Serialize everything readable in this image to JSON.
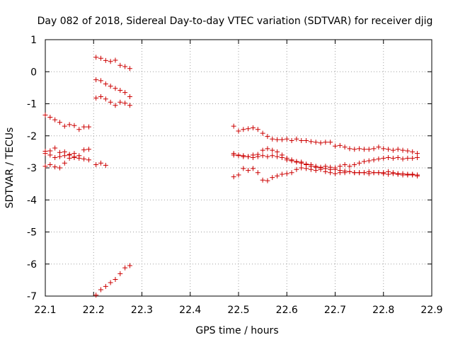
{
  "chart_data": {
    "type": "scatter",
    "title": "Day 082 of 2018, Sidereal Day-to-day VTEC variation (SDTVAR) for receiver djig",
    "xlabel": "GPS time / hours",
    "ylabel": "SDTVAR / TECUs",
    "xlim": [
      22.1,
      22.9
    ],
    "ylim": [
      -7,
      1
    ],
    "xticks": [
      "22.1",
      "22.2",
      "22.3",
      "22.4",
      "22.5",
      "22.6",
      "22.7",
      "22.8",
      "22.9"
    ],
    "yticks": [
      "1",
      "0",
      "-1",
      "-2",
      "-3",
      "-4",
      "-5",
      "-6",
      "-7"
    ],
    "grid": true,
    "marker": "+",
    "color": "#cc0000",
    "series": [
      {
        "name": "s1",
        "x": [
          22.1,
          22.11,
          22.12,
          22.13,
          22.14,
          22.15,
          22.16,
          22.17,
          22.18,
          22.19
        ],
        "y": [
          -1.35,
          -1.42,
          -1.5,
          -1.58,
          -1.7,
          -1.65,
          -1.68,
          -1.8,
          -1.72,
          -1.72
        ]
      },
      {
        "name": "s2",
        "x": [
          22.1,
          22.11,
          22.12,
          22.13,
          22.14,
          22.15,
          22.16,
          22.17,
          22.18,
          22.19
        ],
        "y": [
          -2.48,
          -2.47,
          -2.38,
          -2.52,
          -2.5,
          -2.58,
          -2.55,
          -2.62,
          -2.44,
          -2.42
        ]
      },
      {
        "name": "s3",
        "x": [
          22.1,
          22.11,
          22.12,
          22.13,
          22.14,
          22.15,
          22.16,
          22.17,
          22.18,
          22.19
        ],
        "y": [
          -2.55,
          -2.6,
          -2.68,
          -2.65,
          -2.62,
          -2.6,
          -2.68,
          -2.7,
          -2.72,
          -2.75
        ]
      },
      {
        "name": "s4",
        "x": [
          22.1,
          22.11,
          22.12,
          22.13,
          22.14,
          22.15,
          22.16
        ],
        "y": [
          -2.95,
          -2.9,
          -2.97,
          -3.0,
          -2.85,
          -2.7,
          -2.65
        ]
      },
      {
        "name": "s5",
        "x": [
          22.205,
          22.215,
          22.225,
          22.235,
          22.245,
          22.255,
          22.265,
          22.275
        ],
        "y": [
          0.45,
          0.42,
          0.35,
          0.32,
          0.36,
          0.2,
          0.16,
          0.1
        ]
      },
      {
        "name": "s6",
        "x": [
          22.205,
          22.215,
          22.225,
          22.235,
          22.245,
          22.255,
          22.265,
          22.275
        ],
        "y": [
          -0.25,
          -0.28,
          -0.38,
          -0.45,
          -0.52,
          -0.58,
          -0.65,
          -0.78
        ]
      },
      {
        "name": "s7",
        "x": [
          22.205,
          22.215,
          22.225,
          22.235,
          22.245,
          22.255,
          22.265,
          22.275
        ],
        "y": [
          -0.82,
          -0.78,
          -0.85,
          -0.95,
          -1.05,
          -0.95,
          -0.98,
          -1.05
        ]
      },
      {
        "name": "s8",
        "x": [
          22.205,
          22.215,
          22.225
        ],
        "y": [
          -2.9,
          -2.85,
          -2.92
        ]
      },
      {
        "name": "s9",
        "x": [
          22.205,
          22.215,
          22.225,
          22.235,
          22.245,
          22.255,
          22.265,
          22.275
        ],
        "y": [
          -6.97,
          -6.8,
          -6.7,
          -6.58,
          -6.48,
          -6.3,
          -6.12,
          -6.05
        ]
      },
      {
        "name": "s10",
        "x": [
          22.49,
          22.5,
          22.51,
          22.52,
          22.53,
          22.54,
          22.55,
          22.56,
          22.57,
          22.58,
          22.59,
          22.6,
          22.61,
          22.62,
          22.63,
          22.64,
          22.65,
          22.66,
          22.67,
          22.68,
          22.69,
          22.7,
          22.71,
          22.72,
          22.73,
          22.74,
          22.75,
          22.76,
          22.77,
          22.78,
          22.79,
          22.8,
          22.81,
          22.82,
          22.83,
          22.84,
          22.85,
          22.86,
          22.87
        ],
        "y": [
          -1.7,
          -1.85,
          -1.8,
          -1.78,
          -1.75,
          -1.8,
          -1.92,
          -2.02,
          -2.1,
          -2.12,
          -2.12,
          -2.1,
          -2.15,
          -2.1,
          -2.15,
          -2.15,
          -2.18,
          -2.2,
          -2.22,
          -2.2,
          -2.2,
          -2.32,
          -2.3,
          -2.35,
          -2.4,
          -2.42,
          -2.4,
          -2.42,
          -2.42,
          -2.4,
          -2.35,
          -2.4,
          -2.42,
          -2.45,
          -2.42,
          -2.45,
          -2.47,
          -2.5,
          -2.55
        ]
      },
      {
        "name": "s11",
        "x": [
          22.49,
          22.5,
          22.51,
          22.52,
          22.53,
          22.54,
          22.55,
          22.56,
          22.57,
          22.58,
          22.59,
          22.6,
          22.61,
          22.62,
          22.63,
          22.64,
          22.65,
          22.66,
          22.67,
          22.68,
          22.69,
          22.7,
          22.71,
          22.72,
          22.73,
          22.74,
          22.75,
          22.76,
          22.77,
          22.78,
          22.79,
          22.8,
          22.81,
          22.82,
          22.83,
          22.84,
          22.85,
          22.86,
          22.87
        ],
        "y": [
          -2.55,
          -2.6,
          -2.62,
          -2.65,
          -2.6,
          -2.58,
          -2.45,
          -2.4,
          -2.45,
          -2.5,
          -2.6,
          -2.7,
          -2.75,
          -2.82,
          -2.85,
          -2.9,
          -2.95,
          -2.98,
          -3.0,
          -3.02,
          -3.05,
          -3.05,
          -3.08,
          -3.1,
          -3.12,
          -3.15,
          -3.15,
          -3.15,
          -3.12,
          -3.15,
          -3.15,
          -3.15,
          -3.12,
          -3.15,
          -3.18,
          -3.18,
          -3.2,
          -3.2,
          -3.22
        ]
      },
      {
        "name": "s12",
        "x": [
          22.49,
          22.5,
          22.51,
          22.52,
          22.53,
          22.54,
          22.55,
          22.56,
          22.57,
          22.58,
          22.59,
          22.6,
          22.61,
          22.62,
          22.63,
          22.64,
          22.65,
          22.66,
          22.67,
          22.68,
          22.69,
          22.7,
          22.71,
          22.72,
          22.73,
          22.74,
          22.75,
          22.76,
          22.77,
          22.78,
          22.79,
          22.8,
          22.81,
          22.82,
          22.83,
          22.84,
          22.85,
          22.86,
          22.87
        ],
        "y": [
          -2.6,
          -2.62,
          -2.65,
          -2.65,
          -2.68,
          -2.65,
          -2.62,
          -2.65,
          -2.62,
          -2.65,
          -2.68,
          -2.75,
          -2.78,
          -2.8,
          -2.82,
          -2.88,
          -2.9,
          -2.95,
          -2.98,
          -2.95,
          -2.98,
          -3.0,
          -2.95,
          -2.9,
          -2.95,
          -2.9,
          -2.85,
          -2.8,
          -2.78,
          -2.75,
          -2.72,
          -2.7,
          -2.68,
          -2.7,
          -2.68,
          -2.72,
          -2.7,
          -2.7,
          -2.68
        ]
      },
      {
        "name": "s13",
        "x": [
          22.49,
          22.5,
          22.51,
          22.52,
          22.53,
          22.54,
          22.55,
          22.56,
          22.57,
          22.58,
          22.59,
          22.6,
          22.61,
          22.62,
          22.63,
          22.64,
          22.65,
          22.66,
          22.67,
          22.68,
          22.69,
          22.7,
          22.71,
          22.72,
          22.73,
          22.74,
          22.75,
          22.76,
          22.77,
          22.78,
          22.79,
          22.8,
          22.81,
          22.82,
          22.83,
          22.84,
          22.85,
          22.86,
          22.87
        ],
        "y": [
          -3.28,
          -3.22,
          -3.02,
          -3.08,
          -3.02,
          -3.15,
          -3.38,
          -3.4,
          -3.3,
          -3.25,
          -3.2,
          -3.18,
          -3.15,
          -3.05,
          -3.0,
          -3.02,
          -3.05,
          -3.08,
          -3.05,
          -3.12,
          -3.15,
          -3.18,
          -3.15,
          -3.15,
          -3.12,
          -3.15,
          -3.15,
          -3.15,
          -3.18,
          -3.15,
          -3.15,
          -3.18,
          -3.2,
          -3.18,
          -3.2,
          -3.22,
          -3.22,
          -3.22,
          -3.25
        ]
      }
    ]
  }
}
